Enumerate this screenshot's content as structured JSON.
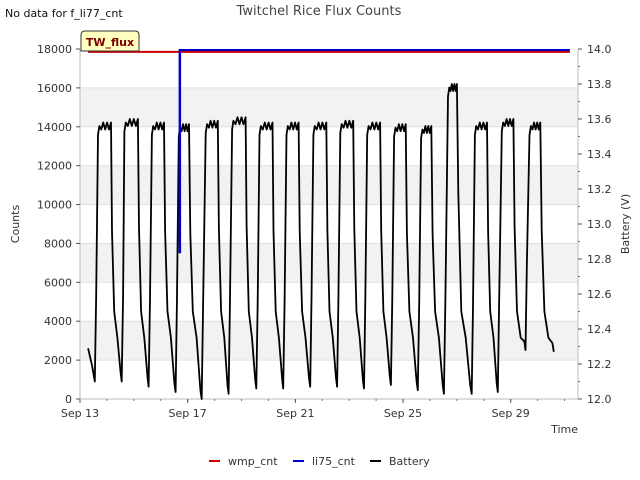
{
  "header": {
    "no_data_note": "No data for f_li77_cnt"
  },
  "chart_data": {
    "type": "line",
    "title": "Twitchel Rice Flux Counts",
    "xlabel": "Time",
    "ylabel": "Counts",
    "y2label": "Battery (V)",
    "site_badge": "TW_flux",
    "x_start_day": 13,
    "xlim": [
      13,
      31.5
    ],
    "ylim": [
      0,
      18000
    ],
    "y2lim": [
      12.0,
      14.0
    ],
    "x_ticks": [
      {
        "day": 13,
        "label": "Sep 13"
      },
      {
        "day": 17,
        "label": "Sep 17"
      },
      {
        "day": 21,
        "label": "Sep 21"
      },
      {
        "day": 25,
        "label": "Sep 25"
      },
      {
        "day": 29,
        "label": "Sep 29"
      }
    ],
    "y_ticks": [
      0,
      2000,
      4000,
      6000,
      8000,
      10000,
      12000,
      14000,
      16000,
      18000
    ],
    "y2_ticks": [
      "12.0",
      "12.2",
      "12.4",
      "12.6",
      "12.8",
      "13.0",
      "13.2",
      "13.4",
      "13.6",
      "13.8",
      "14.0"
    ],
    "series": [
      {
        "name": "wmp_cnt",
        "color": "#cc0000",
        "axis": "left",
        "x": [
          13.3,
          31.2
        ],
        "values": [
          17850,
          17850
        ]
      },
      {
        "name": "li75_cnt",
        "color": "#0000cc",
        "axis": "left",
        "x": [
          16.7,
          16.7,
          16.72,
          16.72,
          16.72,
          31.2
        ],
        "values": [
          7500,
          17950,
          17950,
          7500,
          17950,
          17950
        ]
      },
      {
        "name": "Battery",
        "color": "#000000",
        "axis": "right",
        "cycles": [
          {
            "start": 13.3,
            "start_v": 12.29,
            "min_day": 13.55,
            "min_v": 12.1,
            "rise_end": 13.72,
            "peak_v": 13.56,
            "plateau_end": 14.15,
            "second_min_day": 14.55,
            "second_min_v": 12.1
          },
          {
            "start": 14.55,
            "start_v": 12.1,
            "min_day": 14.55,
            "min_v": 12.1,
            "rise_end": 14.7,
            "peak_v": 13.58,
            "plateau_end": 15.15,
            "second_min_day": 15.55,
            "second_min_v": 12.07
          },
          {
            "start": 15.55,
            "start_v": 12.07,
            "min_day": 15.55,
            "min_v": 12.07,
            "rise_end": 15.72,
            "peak_v": 13.56,
            "plateau_end": 16.12,
            "second_min_day": 16.55,
            "second_min_v": 12.04
          },
          {
            "start": 16.55,
            "start_v": 12.04,
            "min_day": 16.55,
            "min_v": 12.04,
            "rise_end": 16.72,
            "peak_v": 13.55,
            "plateau_end": 17.05,
            "second_min_day": 17.52,
            "second_min_v": 12.0
          },
          {
            "start": 17.52,
            "start_v": 12.0,
            "min_day": 17.52,
            "min_v": 12.0,
            "rise_end": 17.72,
            "peak_v": 13.57,
            "plateau_end": 18.12,
            "second_min_day": 18.52,
            "second_min_v": 12.03
          },
          {
            "start": 18.52,
            "start_v": 12.03,
            "min_day": 18.52,
            "min_v": 12.03,
            "rise_end": 18.7,
            "peak_v": 13.59,
            "plateau_end": 19.15,
            "second_min_day": 19.55,
            "second_min_v": 12.06
          },
          {
            "start": 19.55,
            "start_v": 12.06,
            "min_day": 19.55,
            "min_v": 12.06,
            "rise_end": 19.72,
            "peak_v": 13.56,
            "plateau_end": 20.15,
            "second_min_day": 20.55,
            "second_min_v": 12.06
          },
          {
            "start": 20.55,
            "start_v": 12.06,
            "min_day": 20.55,
            "min_v": 12.06,
            "rise_end": 20.72,
            "peak_v": 13.56,
            "plateau_end": 21.12,
            "second_min_day": 21.55,
            "second_min_v": 12.07
          },
          {
            "start": 21.55,
            "start_v": 12.07,
            "min_day": 21.55,
            "min_v": 12.07,
            "rise_end": 21.72,
            "peak_v": 13.56,
            "plateau_end": 22.15,
            "second_min_day": 22.55,
            "second_min_v": 12.07
          },
          {
            "start": 22.55,
            "start_v": 12.07,
            "min_day": 22.55,
            "min_v": 12.07,
            "rise_end": 22.72,
            "peak_v": 13.57,
            "plateau_end": 23.15,
            "second_min_day": 23.55,
            "second_min_v": 12.06
          },
          {
            "start": 23.55,
            "start_v": 12.06,
            "min_day": 23.55,
            "min_v": 12.06,
            "rise_end": 23.72,
            "peak_v": 13.56,
            "plateau_end": 24.15,
            "second_min_day": 24.55,
            "second_min_v": 12.08
          },
          {
            "start": 24.55,
            "start_v": 12.08,
            "min_day": 24.55,
            "min_v": 12.08,
            "rise_end": 24.72,
            "peak_v": 13.55,
            "plateau_end": 25.1,
            "second_min_day": 25.55,
            "second_min_v": 12.05
          },
          {
            "start": 25.55,
            "start_v": 12.05,
            "min_day": 25.55,
            "min_v": 12.05,
            "rise_end": 25.72,
            "peak_v": 13.54,
            "plateau_end": 26.05,
            "second_min_day": 26.52,
            "second_min_v": 12.03
          },
          {
            "start": 26.52,
            "start_v": 12.03,
            "min_day": 26.52,
            "min_v": 12.03,
            "rise_end": 26.72,
            "peak_v": 13.78,
            "plateau_end": 27.0,
            "second_min_day": 27.55,
            "second_min_v": 12.03
          },
          {
            "start": 27.55,
            "start_v": 12.03,
            "min_day": 27.55,
            "min_v": 12.03,
            "rise_end": 27.72,
            "peak_v": 13.56,
            "plateau_end": 28.12,
            "second_min_day": 28.52,
            "second_min_v": 12.04
          },
          {
            "start": 28.52,
            "start_v": 12.04,
            "min_day": 28.52,
            "min_v": 12.04,
            "rise_end": 28.72,
            "peak_v": 13.58,
            "plateau_end": 29.1,
            "second_min_day": 29.55,
            "second_min_v": 12.28
          },
          {
            "start": 29.55,
            "start_v": 12.28,
            "min_day": 29.55,
            "min_v": 12.28,
            "rise_end": 29.75,
            "peak_v": 13.56,
            "plateau_end": 30.1,
            "second_min_day": 30.6,
            "second_min_v": 12.27
          }
        ]
      }
    ],
    "legend": [
      "wmp_cnt",
      "li75_cnt",
      "Battery"
    ],
    "legend_position": "bottom-center",
    "grid": "horizontal-bands"
  }
}
